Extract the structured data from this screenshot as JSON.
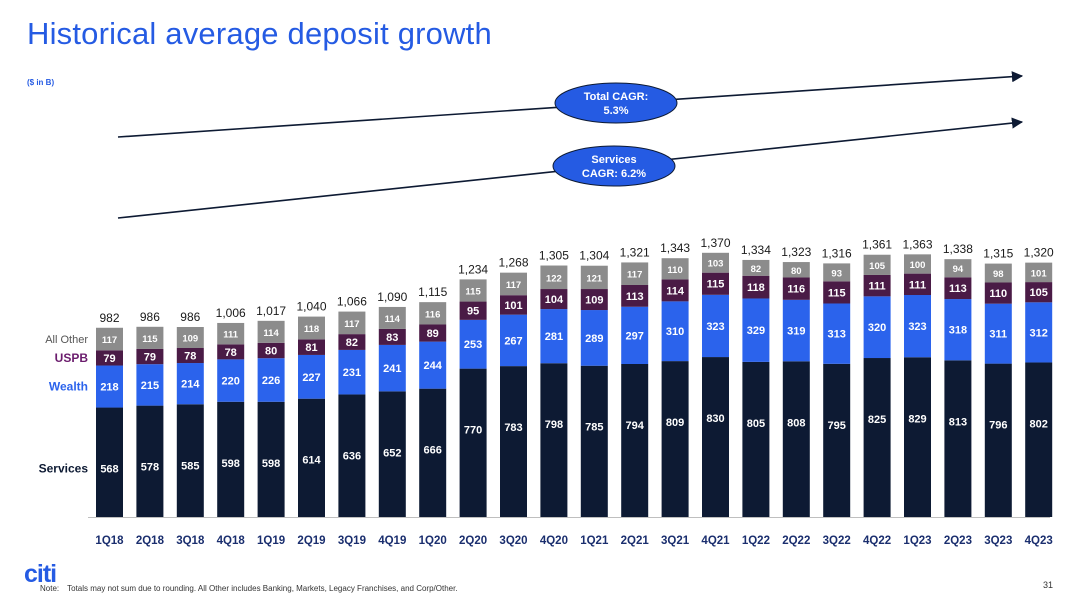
{
  "title": "Historical average deposit growth",
  "unit_label": "($ in B)",
  "note_label": "Note:",
  "note_text": "Totals may not sum due to rounding. All Other includes Banking, Markets, Legacy Franchises, and Corp/Other.",
  "page_number": "31",
  "logo_text": "citi",
  "colors": {
    "title": "#255be3",
    "services": "#0d1a33",
    "wealth": "#2b63ec",
    "uspb": "#4a1b46",
    "all_other": "#8c8c8c",
    "uspb_label": "#6b1c6d",
    "callout": "#255be3"
  },
  "annotations": [
    {
      "line1": "Total CAGR:",
      "line2": "5.3%"
    },
    {
      "line1": "Services",
      "line2": "CAGR: 6.2%"
    }
  ],
  "chart_data": {
    "type": "bar",
    "stacked": true,
    "categories": [
      "1Q18",
      "2Q18",
      "3Q18",
      "4Q18",
      "1Q19",
      "2Q19",
      "3Q19",
      "4Q19",
      "1Q20",
      "2Q20",
      "3Q20",
      "4Q20",
      "1Q21",
      "2Q21",
      "3Q21",
      "4Q21",
      "1Q22",
      "2Q22",
      "3Q22",
      "4Q22",
      "1Q23",
      "2Q23",
      "3Q23",
      "4Q23"
    ],
    "series": [
      {
        "name": "Services",
        "color": "#0d1a33",
        "values": [
          568,
          578,
          585,
          598,
          598,
          614,
          636,
          652,
          666,
          770,
          783,
          798,
          785,
          794,
          809,
          830,
          805,
          808,
          795,
          825,
          829,
          813,
          796,
          802
        ]
      },
      {
        "name": "Wealth",
        "color": "#2b63ec",
        "values": [
          218,
          215,
          214,
          220,
          226,
          227,
          231,
          241,
          244,
          253,
          267,
          281,
          289,
          297,
          310,
          323,
          329,
          319,
          313,
          320,
          323,
          318,
          311,
          312
        ]
      },
      {
        "name": "USPB",
        "color": "#4a1b46",
        "values": [
          79,
          79,
          78,
          78,
          80,
          81,
          82,
          83,
          89,
          95,
          101,
          104,
          109,
          113,
          114,
          115,
          118,
          116,
          115,
          111,
          111,
          113,
          110,
          105
        ]
      },
      {
        "name": "All Other",
        "color": "#8c8c8c",
        "values": [
          117,
          115,
          109,
          111,
          114,
          118,
          117,
          114,
          116,
          115,
          117,
          122,
          121,
          117,
          110,
          103,
          82,
          80,
          93,
          105,
          100,
          94,
          98,
          101
        ]
      }
    ],
    "totals": [
      "982",
      "986",
      "986",
      "1,006",
      "1,017",
      "1,040",
      "1,066",
      "1,090",
      "1,115",
      "1,234",
      "1,268",
      "1,305",
      "1,304",
      "1,321",
      "1,343",
      "1,370",
      "1,334",
      "1,323",
      "1,316",
      "1,361",
      "1,363",
      "1,338",
      "1,315",
      "1,320"
    ],
    "ylim": [
      0,
      1370
    ],
    "grid": false
  }
}
